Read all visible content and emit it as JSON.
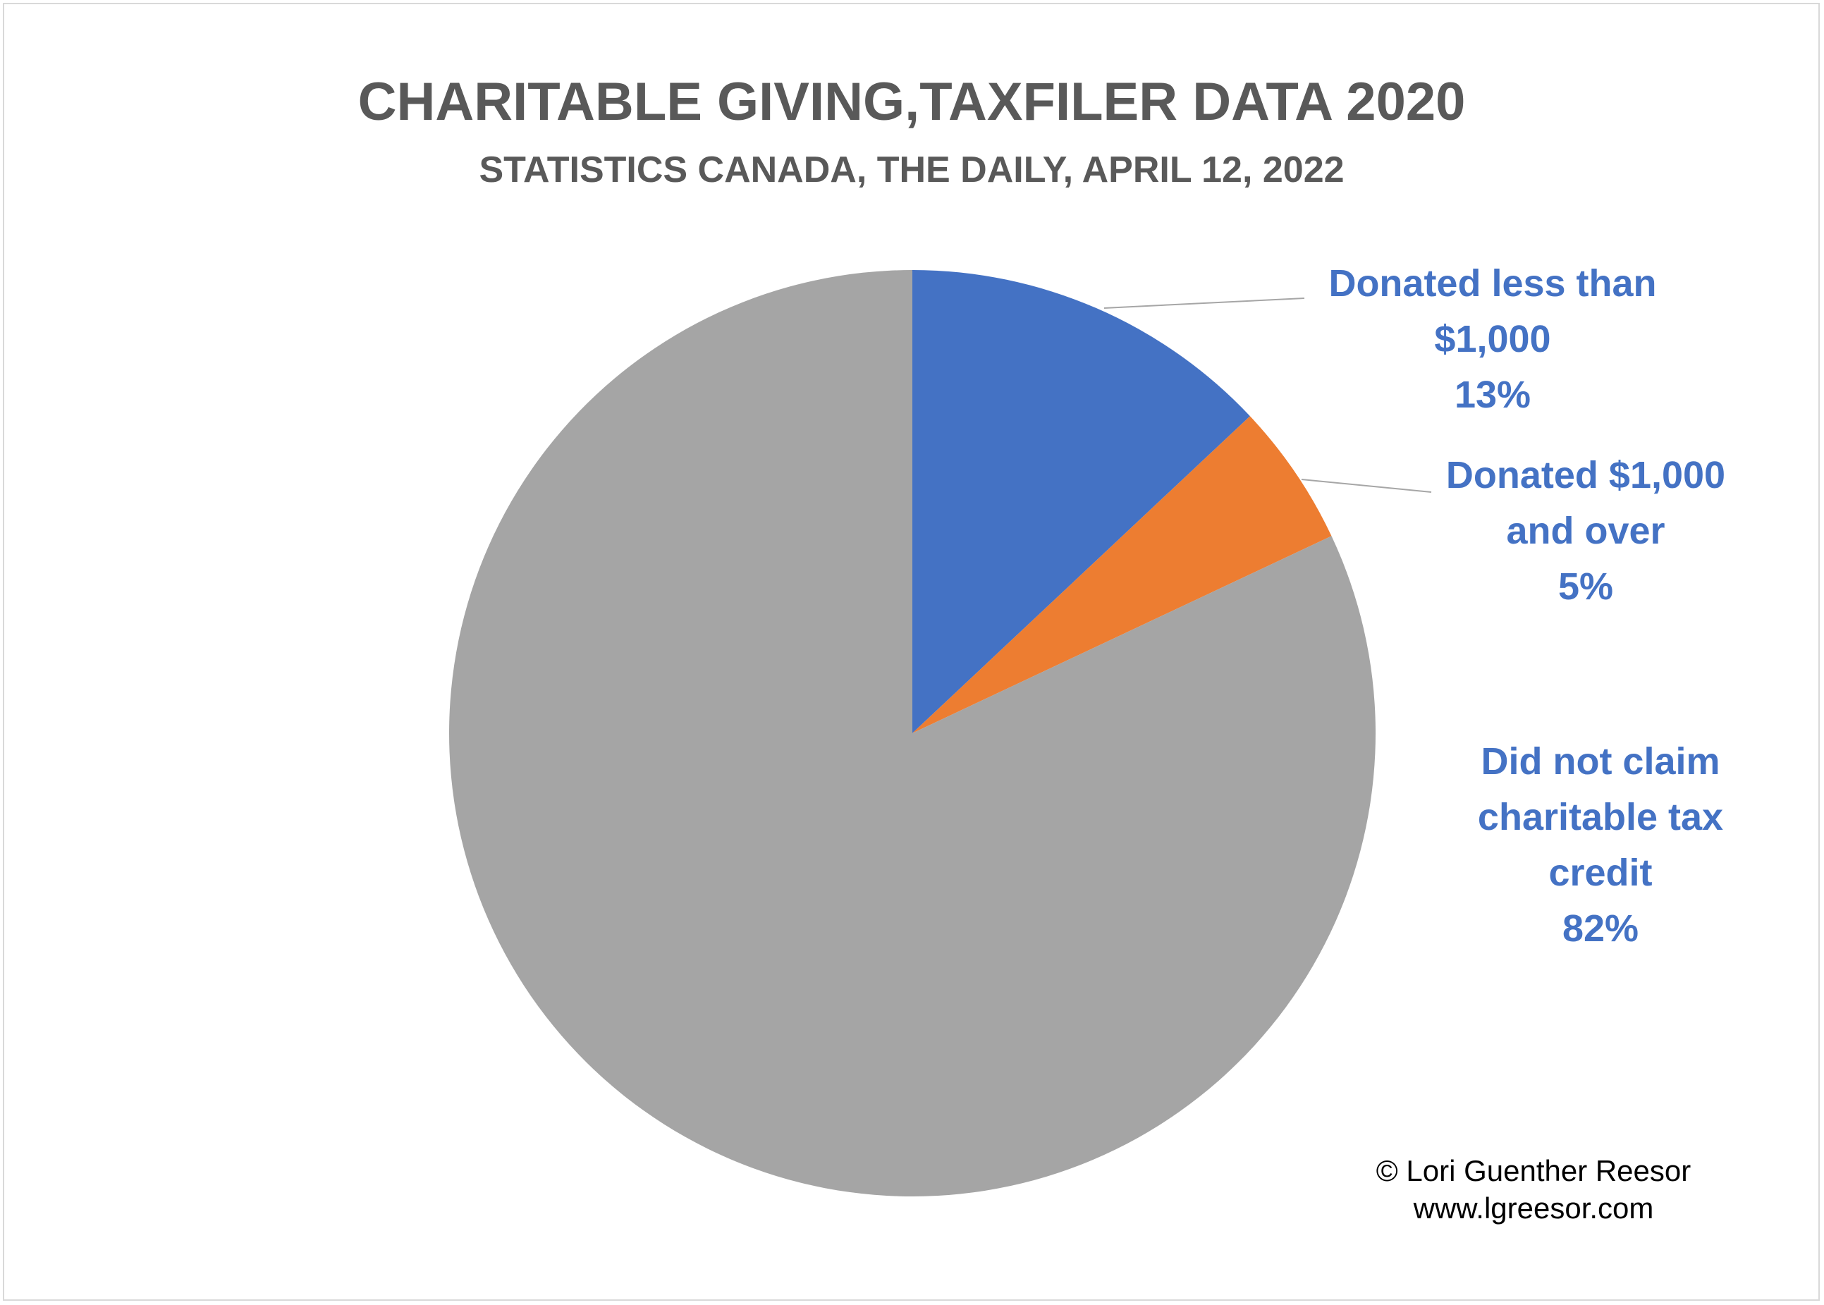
{
  "chart_data": {
    "type": "pie",
    "title": "CHARITABLE GIVING,TAXFILER DATA 2020",
    "subtitle": "STATISTICS CANADA, THE DAILY, APRIL 12, 2022",
    "slices": [
      {
        "label_lines": [
          "Donated less than",
          "$1,000"
        ],
        "value": 13,
        "value_label": "13%",
        "color": "#4472C4"
      },
      {
        "label_lines": [
          "Donated $1,000",
          "and over"
        ],
        "value": 5,
        "value_label": "5%",
        "color": "#ED7D31"
      },
      {
        "label_lines": [
          "Did not claim",
          "charitable tax",
          "credit"
        ],
        "value": 82,
        "value_label": "82%",
        "color": "#A5A5A5"
      }
    ],
    "label_color": "#4472C4",
    "leader_line_color": "#A6A6A6"
  },
  "credit": {
    "line1": "© Lori Guenther Reesor",
    "line2": "www.lgreesor.com"
  }
}
